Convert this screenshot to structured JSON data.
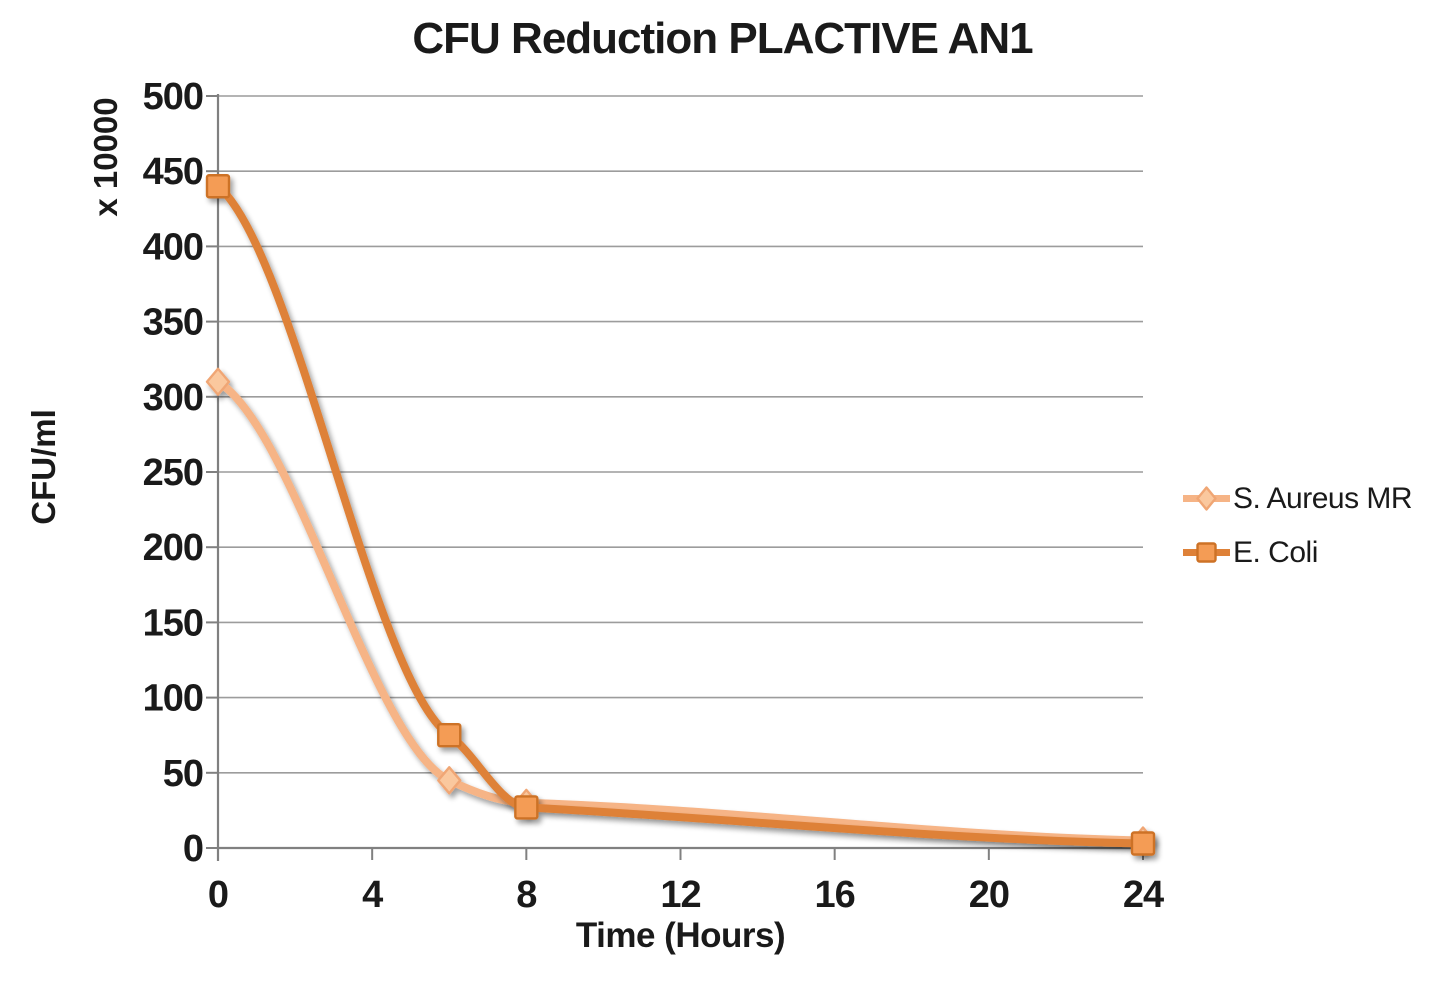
{
  "chart_data": {
    "type": "line",
    "title": "CFU Reduction PLACTIVE AN1",
    "xlabel": "Time (Hours)",
    "ylabel": "CFU/ml",
    "y_multiplier_label": "x 10000",
    "xlim": [
      0,
      24
    ],
    "ylim": [
      0,
      500
    ],
    "x_ticks": [
      0,
      4,
      8,
      12,
      16,
      20,
      24
    ],
    "y_ticks": [
      0,
      50,
      100,
      150,
      200,
      250,
      300,
      350,
      400,
      450,
      500
    ],
    "grid": "horizontal-only",
    "legend_position": "right",
    "smoothed_lines": true,
    "colors": {
      "axis": "#808080",
      "grid": "#9c9c9c",
      "text": "#1a1a1a",
      "background": "#ffffff"
    },
    "series": [
      {
        "name": "S. Aureus MR",
        "marker": "diamond",
        "line_color": "#f6b486",
        "marker_fill": "#fac89e",
        "marker_stroke": "#f0a674",
        "x": [
          0,
          6,
          8,
          24
        ],
        "values": [
          310,
          45,
          30,
          5
        ]
      },
      {
        "name": "E. Coli",
        "marker": "square",
        "line_color": "#de8138",
        "marker_fill": "#f49c55",
        "marker_stroke": "#cd7226",
        "x": [
          0,
          6,
          8,
          24
        ],
        "values": [
          440,
          75,
          27,
          3
        ]
      }
    ]
  }
}
